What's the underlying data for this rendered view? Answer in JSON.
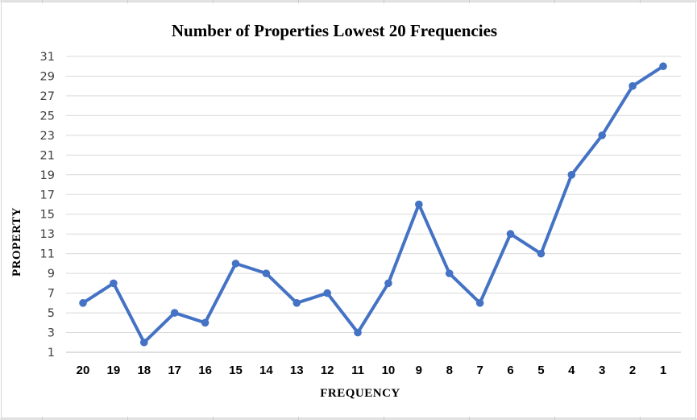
{
  "chart_data": {
    "type": "line",
    "title": "Number of Properties Lowest 20 Frequencies",
    "xlabel": "FREQUENCY",
    "ylabel": "PROPERTY",
    "categories": [
      20,
      19,
      18,
      17,
      16,
      15,
      14,
      13,
      12,
      11,
      10,
      9,
      8,
      7,
      6,
      5,
      4,
      3,
      2,
      1
    ],
    "values": [
      6,
      8,
      2,
      5,
      4,
      10,
      9,
      6,
      7,
      3,
      8,
      16,
      9,
      6,
      13,
      11,
      19,
      23,
      28,
      30
    ],
    "y_ticks": [
      31,
      29,
      27,
      25,
      23,
      21,
      19,
      17,
      15,
      13,
      11,
      9,
      7,
      5,
      3,
      1
    ],
    "ylim": [
      1,
      31
    ],
    "grid": "horizontal",
    "legend": "none",
    "series_name": "Number of Properties",
    "colors": {
      "line": "#4472C4",
      "marker": "#4472C4",
      "gridline": "#D9D9D9",
      "axis_line": "#BFBFBF",
      "ytick_label": "#3f3f3f",
      "xtick_label": "#000000",
      "chart_border": "#D6D6D6",
      "sheet_gridline": "#C9C9C9",
      "background": "#FFFFFF"
    }
  }
}
